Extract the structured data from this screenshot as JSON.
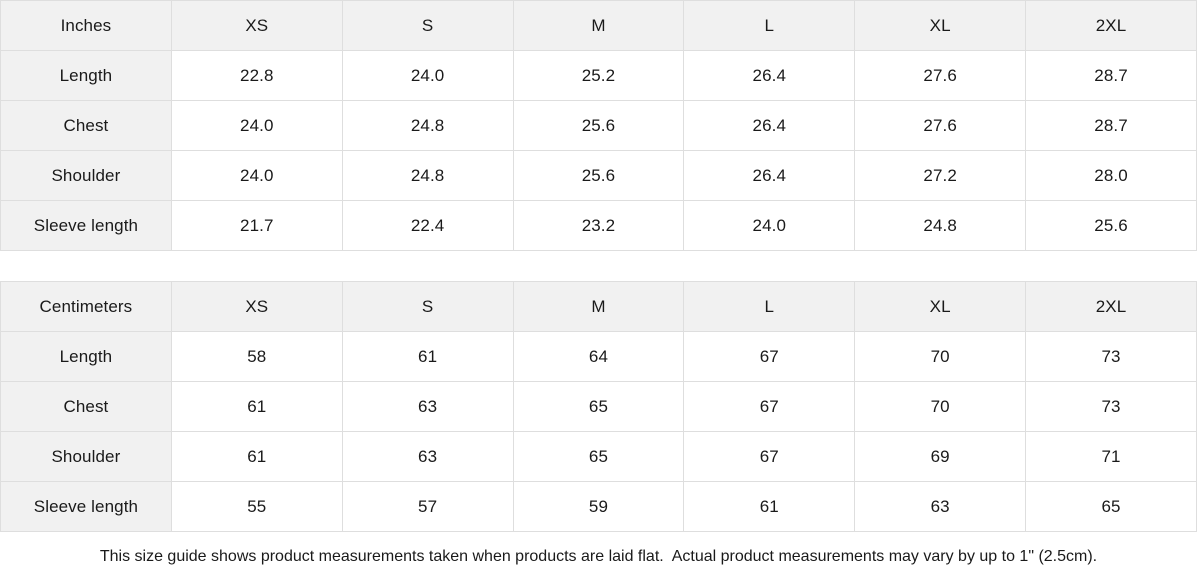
{
  "tables": [
    {
      "unit_label": "Inches",
      "size_headers": [
        "XS",
        "S",
        "M",
        "L",
        "XL",
        "2XL"
      ],
      "rows": [
        {
          "label": "Length",
          "values": [
            "22.8",
            "24.0",
            "25.2",
            "26.4",
            "27.6",
            "28.7"
          ]
        },
        {
          "label": "Chest",
          "values": [
            "24.0",
            "24.8",
            "25.6",
            "26.4",
            "27.6",
            "28.7"
          ]
        },
        {
          "label": "Shoulder",
          "values": [
            "24.0",
            "24.8",
            "25.6",
            "26.4",
            "27.2",
            "28.0"
          ]
        },
        {
          "label": "Sleeve length",
          "values": [
            "21.7",
            "22.4",
            "23.2",
            "24.0",
            "24.8",
            "25.6"
          ]
        }
      ]
    },
    {
      "unit_label": "Centimeters",
      "size_headers": [
        "XS",
        "S",
        "M",
        "L",
        "XL",
        "2XL"
      ],
      "rows": [
        {
          "label": "Length",
          "values": [
            "58",
            "61",
            "64",
            "67",
            "70",
            "73"
          ]
        },
        {
          "label": "Chest",
          "values": [
            "61",
            "63",
            "65",
            "67",
            "70",
            "73"
          ]
        },
        {
          "label": "Shoulder",
          "values": [
            "61",
            "63",
            "65",
            "67",
            "69",
            "71"
          ]
        },
        {
          "label": "Sleeve length",
          "values": [
            "55",
            "57",
            "59",
            "61",
            "63",
            "65"
          ]
        }
      ]
    }
  ],
  "footer": {
    "note": "This size guide shows product measurements taken when products are laid flat.  Actual product measurements may vary by up to 1\" (2.5cm)."
  },
  "colors": {
    "header_bg": "#f1f1f1",
    "cell_bg": "#ffffff",
    "border": "#dedede",
    "text": "#1a1a1a"
  }
}
